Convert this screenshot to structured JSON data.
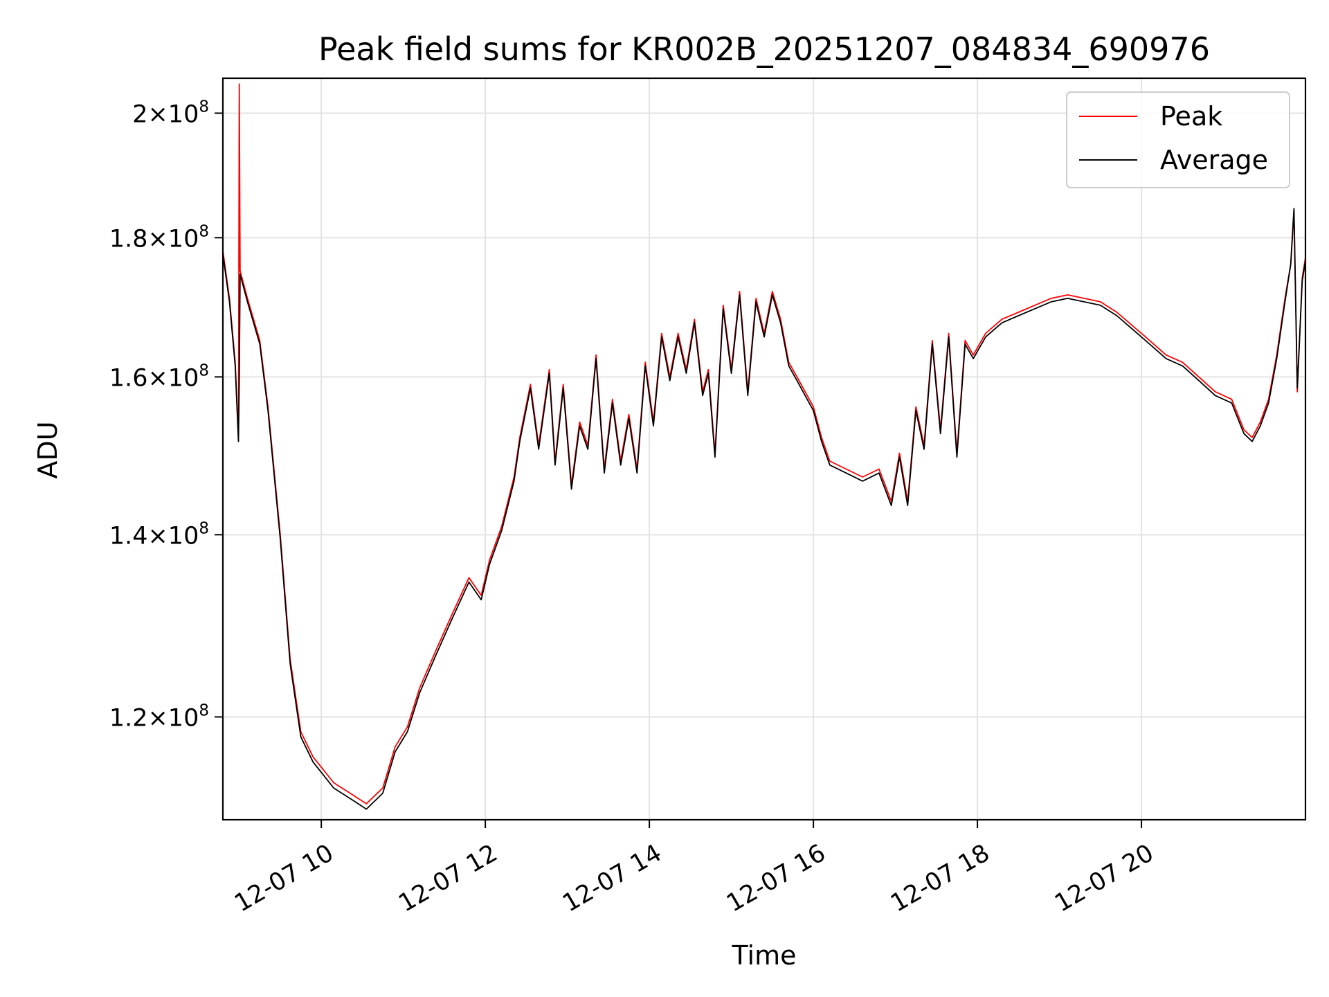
{
  "chart_data": {
    "type": "line",
    "title": "Peak field sums for KR002B_20251207_084834_690976",
    "xlabel": "Time",
    "ylabel": "ADU",
    "yscale": "log",
    "grid": true,
    "legend": {
      "position": "top-right",
      "entries": [
        "Peak",
        "Average"
      ]
    },
    "xlim": [
      8.8,
      22.0
    ],
    "ylim": [
      110000000,
      206000000
    ],
    "x_ticks": [
      {
        "value": 10,
        "label": "12-07 10"
      },
      {
        "value": 12,
        "label": "12-07 12"
      },
      {
        "value": 14,
        "label": "12-07 14"
      },
      {
        "value": 16,
        "label": "12-07 16"
      },
      {
        "value": 18,
        "label": "12-07 18"
      },
      {
        "value": 20,
        "label": "12-07 20"
      }
    ],
    "y_ticks": [
      {
        "value": 120000000,
        "mantissa": "1.2",
        "exponent": "8"
      },
      {
        "value": 140000000,
        "mantissa": "1.4",
        "exponent": "8"
      },
      {
        "value": 160000000,
        "mantissa": "1.6",
        "exponent": "8"
      },
      {
        "value": 180000000,
        "mantissa": "1.8",
        "exponent": "8"
      },
      {
        "value": 200000000,
        "mantissa": "2",
        "exponent": "8"
      }
    ],
    "x_unit": "hours (2025-12-07)",
    "series": [
      {
        "name": "Peak",
        "color": "#ff0000",
        "x": [
          8.8,
          8.88,
          8.95,
          8.99,
          9.0,
          9.01,
          9.1,
          9.25,
          9.35,
          9.5,
          9.62,
          9.75,
          9.9,
          10.0,
          10.15,
          10.35,
          10.55,
          10.75,
          10.9,
          11.05,
          11.2,
          11.4,
          11.6,
          11.8,
          11.95,
          12.05,
          12.2,
          12.35,
          12.42,
          12.55,
          12.65,
          12.78,
          12.85,
          12.95,
          13.05,
          13.15,
          13.25,
          13.35,
          13.45,
          13.55,
          13.65,
          13.75,
          13.85,
          13.95,
          14.05,
          14.15,
          14.25,
          14.35,
          14.45,
          14.55,
          14.65,
          14.72,
          14.8,
          14.9,
          15.0,
          15.1,
          15.2,
          15.3,
          15.4,
          15.5,
          15.6,
          15.7,
          15.8,
          15.9,
          16.0,
          16.1,
          16.2,
          16.4,
          16.6,
          16.8,
          16.95,
          17.05,
          17.15,
          17.25,
          17.35,
          17.45,
          17.55,
          17.65,
          17.75,
          17.85,
          17.95,
          18.1,
          18.3,
          18.5,
          18.7,
          18.9,
          19.1,
          19.3,
          19.5,
          19.7,
          19.9,
          20.1,
          20.3,
          20.5,
          20.7,
          20.9,
          21.1,
          21.25,
          21.35,
          21.45,
          21.55,
          21.65,
          21.75,
          21.82,
          21.86,
          21.9,
          21.96,
          22.0
        ],
        "y": [
          178000000,
          171000000,
          162000000,
          152000000,
          205000000,
          175000000,
          171000000,
          165000000,
          156000000,
          140000000,
          126000000,
          118500000,
          116000000,
          115000000,
          113500000,
          112500000,
          111500000,
          113000000,
          117000000,
          119000000,
          123000000,
          127000000,
          131000000,
          135000000,
          133000000,
          137000000,
          141000000,
          147000000,
          152000000,
          159000000,
          151000000,
          161000000,
          149000000,
          159000000,
          146000000,
          154000000,
          151000000,
          163000000,
          148000000,
          157000000,
          149000000,
          155000000,
          148000000,
          162000000,
          154000000,
          166000000,
          160000000,
          166000000,
          161000000,
          168000000,
          158000000,
          161000000,
          150000000,
          170000000,
          161000000,
          172000000,
          158000000,
          171000000,
          166000000,
          172000000,
          168000000,
          162000000,
          160000000,
          158000000,
          156000000,
          152000000,
          149000000,
          148000000,
          147000000,
          148000000,
          144000000,
          150000000,
          144000000,
          156000000,
          151000000,
          165000000,
          153000000,
          166000000,
          150000000,
          165000000,
          163000000,
          166000000,
          168000000,
          169000000,
          170000000,
          171000000,
          171500000,
          171000000,
          170500000,
          169000000,
          167000000,
          165000000,
          163000000,
          162000000,
          160000000,
          158000000,
          157000000,
          153000000,
          152000000,
          154000000,
          157000000,
          163000000,
          171000000,
          176000000,
          184000000,
          158000000,
          174000000,
          177000000
        ]
      },
      {
        "name": "Average",
        "color": "#000000",
        "x": [
          8.8,
          8.88,
          8.95,
          8.99,
          9.0,
          9.01,
          9.1,
          9.25,
          9.35,
          9.5,
          9.62,
          9.75,
          9.9,
          10.0,
          10.15,
          10.35,
          10.55,
          10.75,
          10.9,
          11.05,
          11.2,
          11.4,
          11.6,
          11.8,
          11.95,
          12.05,
          12.2,
          12.35,
          12.42,
          12.55,
          12.65,
          12.78,
          12.85,
          12.95,
          13.05,
          13.15,
          13.25,
          13.35,
          13.45,
          13.55,
          13.65,
          13.75,
          13.85,
          13.95,
          14.05,
          14.15,
          14.25,
          14.35,
          14.45,
          14.55,
          14.65,
          14.72,
          14.8,
          14.9,
          15.0,
          15.1,
          15.2,
          15.3,
          15.4,
          15.5,
          15.6,
          15.7,
          15.8,
          15.9,
          16.0,
          16.1,
          16.2,
          16.4,
          16.6,
          16.8,
          16.95,
          17.05,
          17.15,
          17.25,
          17.35,
          17.45,
          17.55,
          17.65,
          17.75,
          17.85,
          17.95,
          18.1,
          18.3,
          18.5,
          18.7,
          18.9,
          19.1,
          19.3,
          19.5,
          19.7,
          19.9,
          20.1,
          20.3,
          20.5,
          20.7,
          20.9,
          21.1,
          21.25,
          21.35,
          21.45,
          21.55,
          21.65,
          21.75,
          21.82,
          21.86,
          21.9,
          21.96,
          22.0
        ],
        "y": [
          177500000,
          170500000,
          161500000,
          151500000,
          160000000,
          174500000,
          170500000,
          164500000,
          155500000,
          139500000,
          125500000,
          118000000,
          115500000,
          114500000,
          113000000,
          112000000,
          111000000,
          112500000,
          116500000,
          118500000,
          122500000,
          126500000,
          130500000,
          134500000,
          132500000,
          136500000,
          140500000,
          146500000,
          151500000,
          158500000,
          150500000,
          160500000,
          148500000,
          158500000,
          145500000,
          153500000,
          150500000,
          162500000,
          147500000,
          156500000,
          148500000,
          154500000,
          147500000,
          161500000,
          153500000,
          165500000,
          159500000,
          165500000,
          160500000,
          167500000,
          157500000,
          160500000,
          149500000,
          169500000,
          160500000,
          171500000,
          157500000,
          170500000,
          165500000,
          171500000,
          167500000,
          161500000,
          159500000,
          157500000,
          155500000,
          151500000,
          148500000,
          147500000,
          146500000,
          147500000,
          143500000,
          149500000,
          143500000,
          155500000,
          150500000,
          164500000,
          152500000,
          165500000,
          149500000,
          164500000,
          162500000,
          165500000,
          167500000,
          168500000,
          169500000,
          170500000,
          171000000,
          170500000,
          170000000,
          168500000,
          166500000,
          164500000,
          162500000,
          161500000,
          159500000,
          157500000,
          156500000,
          152500000,
          151500000,
          153500000,
          156500000,
          162500000,
          170500000,
          176000000,
          184500000,
          158500000,
          173500000,
          176500000
        ]
      }
    ]
  }
}
